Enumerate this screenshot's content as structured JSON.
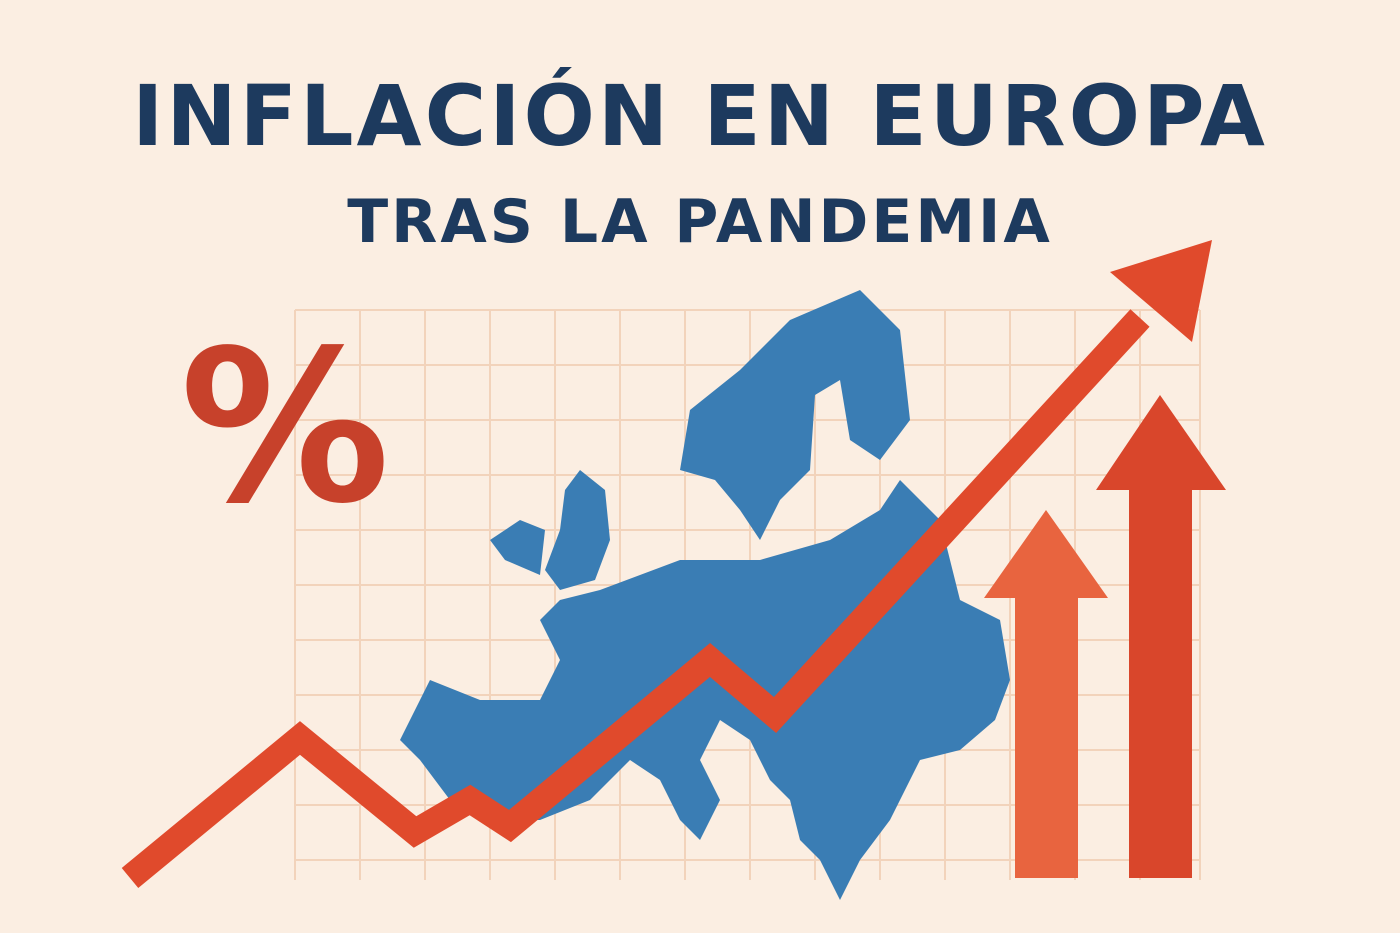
{
  "header": {
    "title": "INFLACIÓN EN EUROPA",
    "subtitle": "TRAS LA PANDEMIA"
  },
  "symbol": "%"
}
